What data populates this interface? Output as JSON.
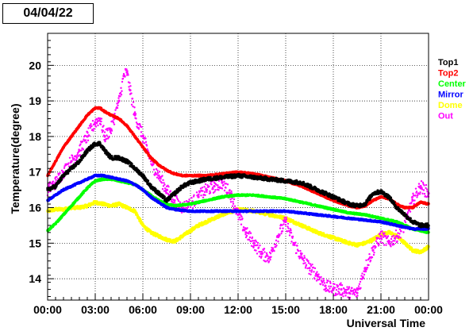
{
  "header": {
    "date": "04/04/22"
  },
  "chart_data": {
    "type": "scatter",
    "title": "",
    "xlabel": "Universal Time",
    "ylabel": "Temperature(degree)",
    "x_unit": "hours UT",
    "xlim": [
      0,
      24
    ],
    "ylim": [
      13.4,
      20.9
    ],
    "grid": true,
    "legend_position": "right",
    "x_ticks": [
      {
        "v": 0,
        "label": "00:00"
      },
      {
        "v": 3,
        "label": "03:00"
      },
      {
        "v": 6,
        "label": "06:00"
      },
      {
        "v": 9,
        "label": "09:00"
      },
      {
        "v": 12,
        "label": "12:00"
      },
      {
        "v": 15,
        "label": "15:00"
      },
      {
        "v": 18,
        "label": "18:00"
      },
      {
        "v": 21,
        "label": "21:00"
      },
      {
        "v": 24,
        "label": "00:00"
      }
    ],
    "y_ticks": [
      {
        "v": 14,
        "label": "14"
      },
      {
        "v": 15,
        "label": "15"
      },
      {
        "v": 16,
        "label": "16"
      },
      {
        "v": 17,
        "label": "17"
      },
      {
        "v": 18,
        "label": "18"
      },
      {
        "v": 19,
        "label": "19"
      },
      {
        "v": 20,
        "label": "20"
      }
    ],
    "series": [
      {
        "name": "Top1",
        "color": "#000000",
        "noise": 0.05,
        "x": [
          0,
          0.5,
          1,
          1.5,
          2,
          2.5,
          3,
          3.3,
          3.6,
          4,
          4.5,
          5,
          5.5,
          6,
          6.5,
          7,
          7.5,
          8,
          8.5,
          9,
          9.5,
          10,
          11,
          12,
          13,
          14,
          15,
          16,
          17,
          18,
          19,
          19.5,
          20,
          20.5,
          21,
          21.5,
          22,
          22.5,
          23,
          23.5,
          24
        ],
        "y": [
          16.5,
          16.6,
          16.9,
          17.1,
          17.3,
          17.6,
          17.8,
          17.8,
          17.6,
          17.4,
          17.4,
          17.3,
          17.1,
          16.9,
          16.6,
          16.4,
          16.2,
          16.4,
          16.6,
          16.7,
          16.75,
          16.8,
          16.85,
          16.9,
          16.85,
          16.8,
          16.75,
          16.7,
          16.5,
          16.3,
          16.1,
          16.05,
          16.1,
          16.4,
          16.45,
          16.3,
          16.0,
          15.8,
          15.6,
          15.5,
          15.5
        ]
      },
      {
        "name": "Top2",
        "color": "#ff0000",
        "noise": 0.02,
        "x": [
          0,
          0.5,
          1,
          1.5,
          2,
          2.5,
          3,
          3.3,
          3.6,
          4,
          4.5,
          5,
          5.5,
          6,
          6.5,
          7,
          7.5,
          8,
          8.5,
          9,
          10,
          11,
          12,
          13,
          14,
          15,
          16,
          17,
          18,
          19,
          19.5,
          20,
          20.5,
          21,
          21.5,
          22,
          22.5,
          23,
          23.5,
          24
        ],
        "y": [
          16.9,
          17.3,
          17.7,
          18.0,
          18.3,
          18.6,
          18.8,
          18.8,
          18.7,
          18.6,
          18.5,
          18.3,
          18.0,
          17.7,
          17.4,
          17.2,
          17.05,
          16.95,
          16.9,
          16.9,
          16.9,
          16.95,
          17.0,
          16.95,
          16.85,
          16.75,
          16.6,
          16.4,
          16.2,
          16.05,
          16.0,
          16.05,
          16.2,
          16.3,
          16.25,
          16.1,
          16.0,
          16.0,
          16.15,
          16.1
        ]
      },
      {
        "name": "Center",
        "color": "#00ff00",
        "noise": 0.02,
        "x": [
          0,
          0.5,
          1,
          1.5,
          2,
          2.5,
          3,
          3.5,
          4,
          4.5,
          5,
          5.5,
          6,
          6.5,
          7,
          7.5,
          8,
          9,
          10,
          11,
          12,
          13,
          14,
          15,
          16,
          17,
          18,
          19,
          20,
          21,
          22,
          22.5,
          23,
          23.5,
          24
        ],
        "y": [
          15.35,
          15.55,
          15.8,
          16.05,
          16.3,
          16.55,
          16.75,
          16.8,
          16.8,
          16.75,
          16.7,
          16.65,
          16.5,
          16.35,
          16.2,
          16.1,
          16.05,
          16.1,
          16.2,
          16.3,
          16.35,
          16.35,
          16.3,
          16.25,
          16.15,
          16.05,
          15.95,
          15.85,
          15.8,
          15.7,
          15.6,
          15.5,
          15.4,
          15.35,
          15.3
        ]
      },
      {
        "name": "Mirror",
        "color": "#0000ff",
        "noise": 0.02,
        "x": [
          0,
          0.5,
          1,
          1.5,
          2,
          2.5,
          3,
          3.5,
          4,
          4.5,
          5,
          5.5,
          6,
          6.5,
          7,
          7.5,
          8,
          9,
          10,
          11,
          12,
          13,
          14,
          15,
          16,
          17,
          18,
          19,
          20,
          21,
          22,
          22.5,
          23,
          23.5,
          24
        ],
        "y": [
          16.2,
          16.35,
          16.5,
          16.6,
          16.7,
          16.8,
          16.9,
          16.9,
          16.85,
          16.8,
          16.75,
          16.65,
          16.5,
          16.3,
          16.15,
          16.0,
          15.95,
          15.9,
          15.9,
          15.9,
          15.9,
          15.9,
          15.9,
          15.9,
          15.85,
          15.8,
          15.75,
          15.7,
          15.65,
          15.6,
          15.5,
          15.45,
          15.4,
          15.4,
          15.4
        ]
      },
      {
        "name": "Dome",
        "color": "#ffff00",
        "noise": 0.04,
        "x": [
          0,
          0.5,
          1,
          1.5,
          2,
          2.5,
          3,
          3.5,
          4,
          4.5,
          5,
          5.5,
          6,
          6.5,
          7,
          7.5,
          8,
          8.5,
          9,
          9.5,
          10,
          11,
          12,
          13,
          14,
          15,
          16,
          17,
          18,
          19,
          19.5,
          20,
          20.5,
          21,
          21.5,
          22,
          22.5,
          23,
          23.5,
          24
        ],
        "y": [
          15.9,
          15.95,
          15.95,
          16.0,
          16.0,
          16.05,
          16.15,
          16.1,
          16.05,
          16.1,
          16.0,
          15.9,
          15.5,
          15.3,
          15.2,
          15.1,
          15.05,
          15.2,
          15.35,
          15.5,
          15.6,
          15.8,
          15.95,
          15.9,
          15.8,
          15.7,
          15.5,
          15.3,
          15.15,
          15.0,
          14.95,
          15.0,
          15.1,
          15.25,
          15.3,
          15.2,
          15.0,
          14.8,
          14.75,
          14.9
        ]
      },
      {
        "name": "Out",
        "color": "#ff00ff",
        "noise": 0.18,
        "x": [
          0,
          0.5,
          1,
          1.5,
          2,
          2.5,
          3,
          3.3,
          3.6,
          4,
          4.5,
          4.8,
          5,
          5.2,
          5.5,
          6,
          6.3,
          6.6,
          7,
          7.5,
          8,
          8.5,
          9,
          9.5,
          10,
          10.5,
          11,
          11.5,
          12,
          12.5,
          13,
          13.5,
          14,
          14.5,
          15,
          15.5,
          16,
          16.5,
          17,
          17.5,
          18,
          18.5,
          19,
          19.5,
          20,
          20.5,
          21,
          21.5,
          22,
          22.5,
          23,
          23.5,
          24
        ],
        "y": [
          16.5,
          16.7,
          17.0,
          17.3,
          17.6,
          18.0,
          18.4,
          18.5,
          18.0,
          18.2,
          19.0,
          19.7,
          19.8,
          19.3,
          18.6,
          18.0,
          17.6,
          17.2,
          16.9,
          16.5,
          16.2,
          16.0,
          16.1,
          16.3,
          16.5,
          16.6,
          16.7,
          16.4,
          15.8,
          15.3,
          15.0,
          14.7,
          14.6,
          15.2,
          15.6,
          15.0,
          14.6,
          14.3,
          14.1,
          13.8,
          13.7,
          13.7,
          13.6,
          13.6,
          14.3,
          14.8,
          15.2,
          15.0,
          15.2,
          15.5,
          16.2,
          16.6,
          16.4
        ]
      }
    ]
  }
}
